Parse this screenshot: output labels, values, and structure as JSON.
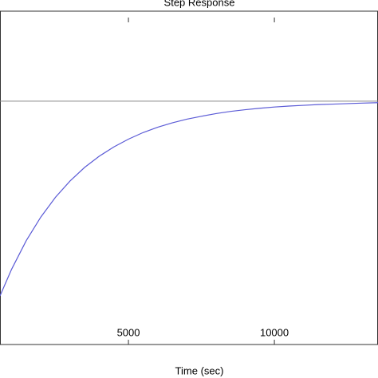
{
  "chart_data": {
    "type": "line",
    "title": "Step Response",
    "x_label": "Time (sec)",
    "x": [
      600,
      1000,
      1500,
      2000,
      2500,
      3000,
      3500,
      4000,
      4500,
      5000,
      5500,
      6000,
      6500,
      7000,
      7500,
      8000,
      8500,
      9000,
      9500,
      10000,
      10500,
      11000,
      11500,
      12000,
      12500,
      13000,
      13550
    ],
    "series": [
      {
        "color": "#5b5bd6",
        "values": [
          0.2,
          0.31,
          0.427,
          0.524,
          0.605,
          0.672,
          0.728,
          0.774,
          0.812,
          0.844,
          0.871,
          0.893,
          0.911,
          0.926,
          0.938,
          0.949,
          0.958,
          0.965,
          0.971,
          0.976,
          0.98,
          0.983,
          0.986,
          0.988,
          0.99,
          0.992,
          0.994
        ]
      }
    ],
    "steady_state": 1,
    "steady_state_color": "#888888",
    "xlim": [
      600,
      13550
    ],
    "xticks": [
      5000,
      10000
    ],
    "ylim": [
      0,
      1.37
    ]
  }
}
